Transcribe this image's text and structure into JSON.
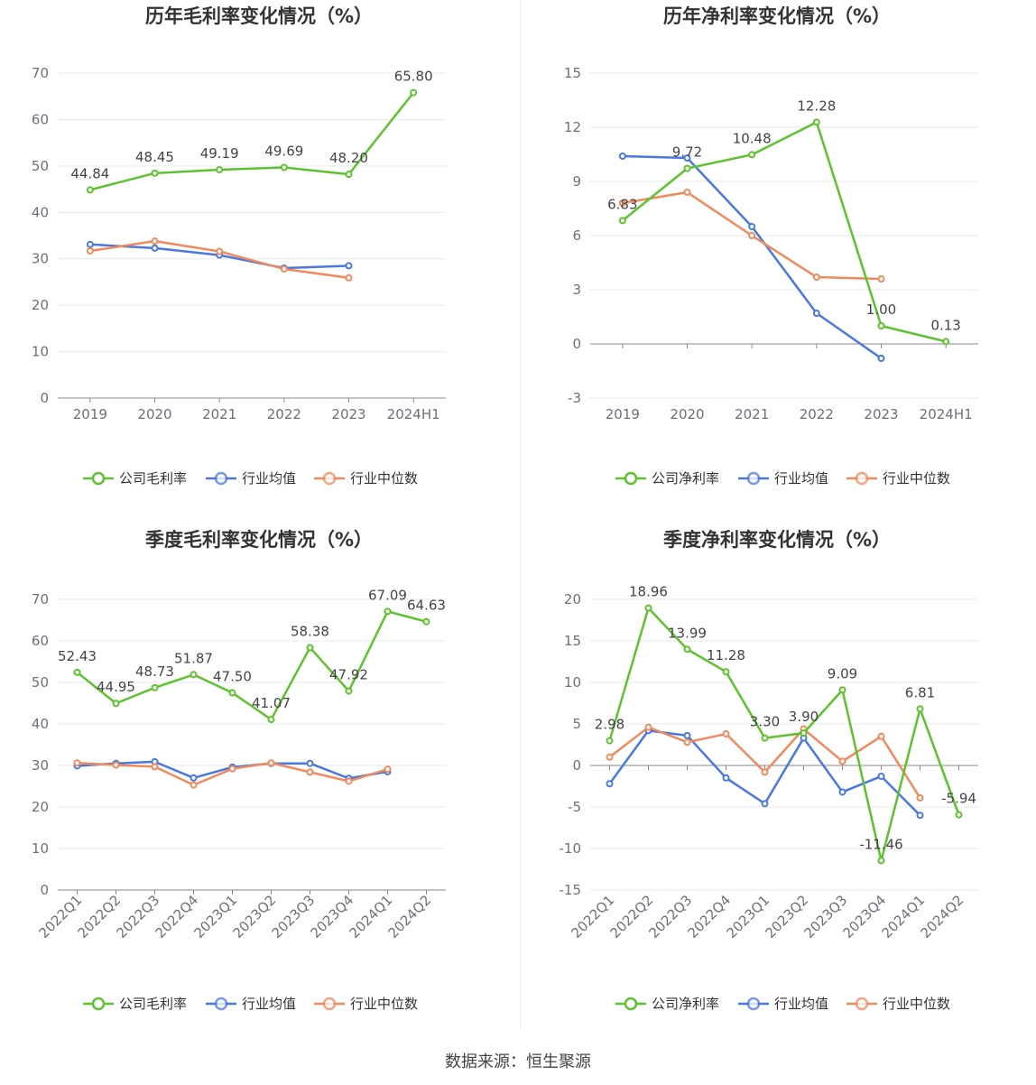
{
  "chart_data": [
    {
      "type": "line",
      "title": "历年毛利率变化情况（%）",
      "categories": [
        "2019",
        "2020",
        "2021",
        "2022",
        "2023",
        "2024H1"
      ],
      "ylim": [
        0,
        70
      ],
      "yticks": [
        0,
        10,
        20,
        30,
        40,
        50,
        60,
        70
      ],
      "grid": true,
      "legend_position": "bottom",
      "rotate_x_labels": false,
      "series": [
        {
          "name": "公司毛利率",
          "color": "#5ec22f",
          "labels": true,
          "values": [
            44.84,
            48.45,
            49.19,
            49.69,
            48.2,
            65.8
          ],
          "value_labels": [
            "44.84",
            "48.45",
            "49.19",
            "49.69",
            "48.20",
            "65.80"
          ]
        },
        {
          "name": "行业均值",
          "color": "#4a78e0",
          "labels": false,
          "values": [
            33.1,
            32.3,
            30.8,
            28.0,
            28.5,
            null
          ]
        },
        {
          "name": "行业中位数",
          "color": "#f08a5d",
          "labels": false,
          "values": [
            31.7,
            33.8,
            31.6,
            27.8,
            25.9,
            null
          ]
        }
      ]
    },
    {
      "type": "line",
      "title": "历年净利率变化情况（%）",
      "categories": [
        "2019",
        "2020",
        "2021",
        "2022",
        "2023",
        "2024H1"
      ],
      "ylim": [
        -3,
        15
      ],
      "yticks": [
        -3,
        0,
        3,
        6,
        9,
        12,
        15
      ],
      "grid": true,
      "legend_position": "bottom",
      "rotate_x_labels": false,
      "series": [
        {
          "name": "公司净利率",
          "color": "#5ec22f",
          "labels": true,
          "values": [
            6.83,
            9.72,
            10.48,
            12.28,
            1.0,
            0.13
          ],
          "value_labels": [
            "6.83",
            "9.72",
            "10.48",
            "12.28",
            "1.00",
            "0.13"
          ]
        },
        {
          "name": "行业均值",
          "color": "#4a78e0",
          "labels": false,
          "values": [
            10.4,
            10.3,
            6.5,
            1.7,
            -0.8,
            null
          ]
        },
        {
          "name": "行业中位数",
          "color": "#f08a5d",
          "labels": false,
          "values": [
            7.8,
            8.4,
            6.0,
            3.7,
            3.6,
            null
          ]
        }
      ]
    },
    {
      "type": "line",
      "title": "季度毛利率变化情况（%）",
      "categories": [
        "2022Q1",
        "2022Q2",
        "2022Q3",
        "2022Q4",
        "2023Q1",
        "2023Q2",
        "2023Q3",
        "2023Q4",
        "2024Q1",
        "2024Q2"
      ],
      "ylim": [
        0,
        70
      ],
      "yticks": [
        0,
        10,
        20,
        30,
        40,
        50,
        60,
        70
      ],
      "grid": true,
      "legend_position": "bottom",
      "rotate_x_labels": true,
      "series": [
        {
          "name": "公司毛利率",
          "color": "#5ec22f",
          "labels": true,
          "values": [
            52.43,
            44.95,
            48.73,
            51.87,
            47.5,
            41.07,
            58.38,
            47.92,
            67.09,
            64.63
          ],
          "value_labels": [
            "52.43",
            "44.95",
            "48.73",
            "51.87",
            "47.50",
            "41.07",
            "58.38",
            "47.92",
            "67.09",
            "64.63"
          ]
        },
        {
          "name": "行业均值",
          "color": "#4a78e0",
          "labels": false,
          "values": [
            29.9,
            30.5,
            30.9,
            27.0,
            29.6,
            30.5,
            30.5,
            26.9,
            28.5,
            null
          ]
        },
        {
          "name": "行业中位数",
          "color": "#f08a5d",
          "labels": false,
          "values": [
            30.6,
            30.1,
            29.7,
            25.3,
            29.2,
            30.6,
            28.4,
            26.2,
            29.1,
            null
          ]
        }
      ]
    },
    {
      "type": "line",
      "title": "季度净利率变化情况（%）",
      "categories": [
        "2022Q1",
        "2022Q2",
        "2022Q3",
        "2022Q4",
        "2023Q1",
        "2023Q2",
        "2023Q3",
        "2023Q4",
        "2024Q1",
        "2024Q2"
      ],
      "ylim": [
        -15,
        20
      ],
      "yticks": [
        -15,
        -10,
        -5,
        0,
        5,
        10,
        15,
        20
      ],
      "grid": true,
      "legend_position": "bottom",
      "rotate_x_labels": true,
      "series": [
        {
          "name": "公司净利率",
          "color": "#5ec22f",
          "labels": true,
          "values": [
            2.98,
            18.96,
            13.99,
            11.28,
            3.3,
            3.9,
            9.09,
            -11.46,
            6.81,
            -5.94
          ],
          "value_labels": [
            "2.98",
            "18.96",
            "13.99",
            "11.28",
            "3.30",
            "3.90",
            "9.09",
            "-11.46",
            "6.81",
            "-5.94"
          ]
        },
        {
          "name": "行业均值",
          "color": "#4a78e0",
          "labels": false,
          "values": [
            -2.2,
            4.2,
            3.6,
            -1.5,
            -4.6,
            3.3,
            -3.2,
            -1.3,
            -6.0,
            null
          ]
        },
        {
          "name": "行业中位数",
          "color": "#f08a5d",
          "labels": false,
          "values": [
            1.0,
            4.6,
            2.8,
            3.8,
            -0.8,
            4.4,
            0.5,
            3.5,
            -3.9,
            null
          ]
        }
      ]
    }
  ],
  "footer": {
    "source": "数据来源：恒生聚源"
  }
}
